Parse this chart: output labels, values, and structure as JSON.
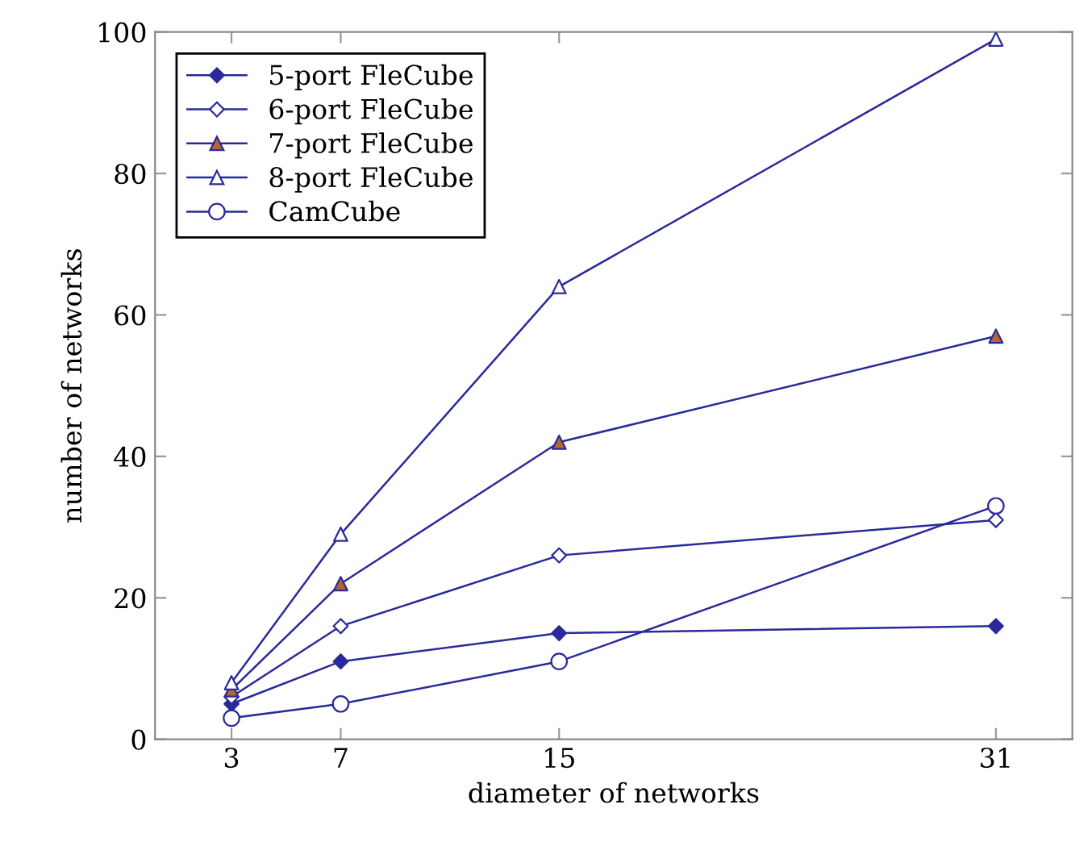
{
  "chart_data": {
    "type": "line",
    "xlabel": "diameter of networks",
    "ylabel": "number of networks",
    "x": [
      3,
      7,
      15,
      31
    ],
    "xlim": [
      0.2,
      33.8
    ],
    "xticks": [
      3,
      7,
      15,
      31
    ],
    "ylim": [
      0,
      100
    ],
    "yticks": [
      0,
      20,
      40,
      60,
      80,
      100
    ],
    "grid": false,
    "legend": "top left",
    "line_style": "solid",
    "series": [
      {
        "name": "5-port FleCube",
        "color": "#2a2a9a",
        "marker": "diamond",
        "colors": [
          "#2a2a9a",
          "#2a2a9a",
          "#2a2a9a",
          "#2a2a9a"
        ],
        "values": [
          5,
          11,
          15,
          16
        ]
      },
      {
        "name": "6-port FleCube",
        "color": "#2a2a9a",
        "marker": "diamond",
        "values": [
          6,
          16,
          26,
          31
        ]
      },
      {
        "name": "7-port FleCube",
        "color": "#2a2a9a",
        "marker": "triangle",
        "colors": [
          "#b5652f",
          "#b5652f",
          "#b5652f",
          "#b5652f"
        ],
        "values": [
          7,
          22,
          42,
          57
        ]
      },
      {
        "name": "8-port FleCube",
        "color": "#2a2a9a",
        "marker": "triangle",
        "values": [
          8,
          29,
          64,
          99
        ]
      },
      {
        "name": "CamCube",
        "color": "#2a2a9a",
        "marker": "circle",
        "values": [
          3,
          5,
          11,
          33
        ]
      }
    ]
  }
}
